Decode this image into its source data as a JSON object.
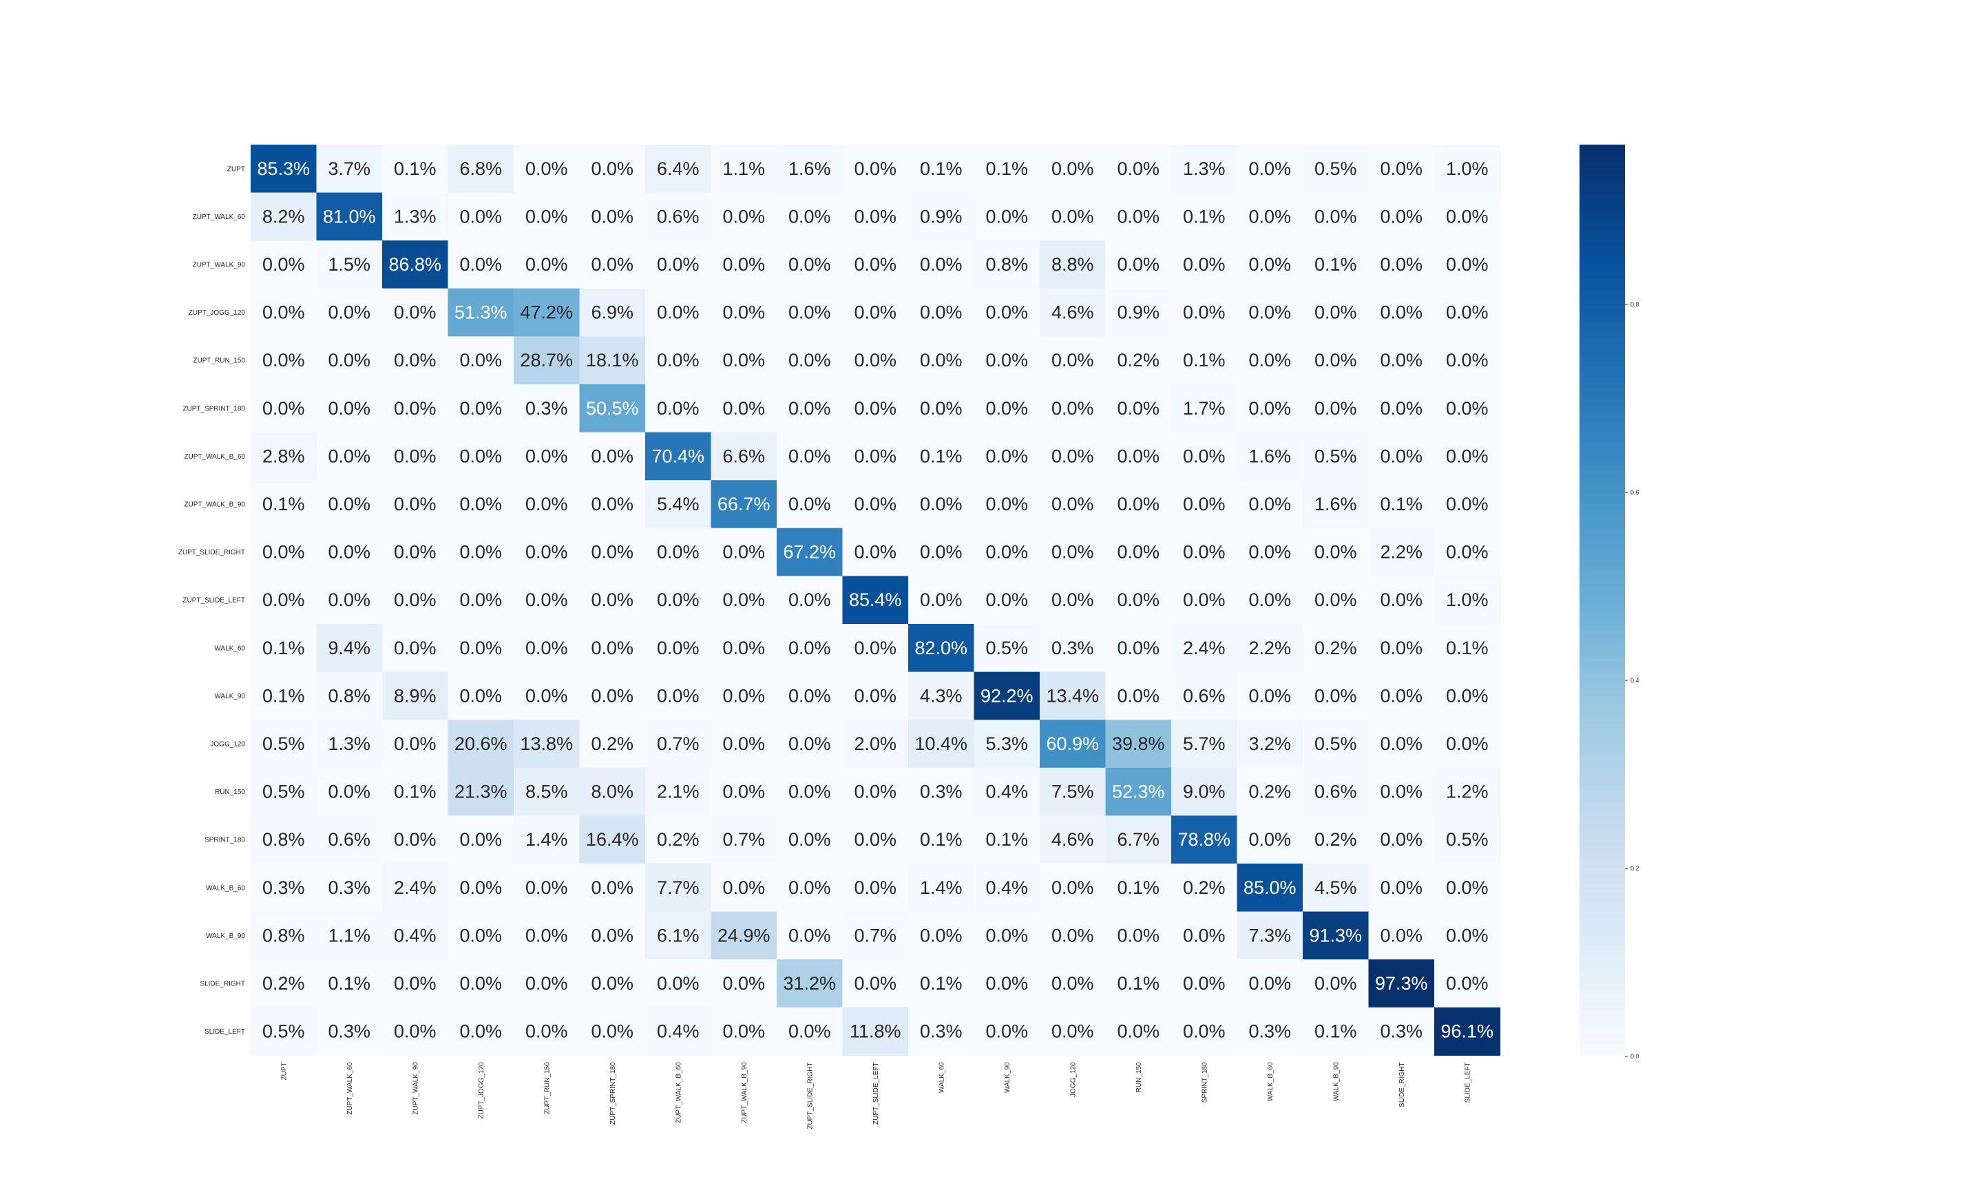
{
  "chart_data": {
    "type": "heatmap",
    "title": "",
    "xlabel": "",
    "ylabel": "",
    "row_labels": [
      "ZUPT",
      "ZUPT_WALK_60",
      "ZUPT_WALK_90",
      "ZUPT_JOGG_120",
      "ZUPT_RUN_150",
      "ZUPT_SPRINT_180",
      "ZUPT_WALK_B_60",
      "ZUPT_WALK_B_90",
      "ZUPT_SLIDE_RIGHT",
      "ZUPT_SLIDE_LEFT",
      "WALK_60",
      "WALK_90",
      "JOGG_120",
      "RUN_150",
      "SPRINT_180",
      "WALK_B_60",
      "WALK_B_90",
      "SLIDE_RIGHT",
      "SLIDE_LEFT"
    ],
    "col_labels": [
      "ZUPT",
      "ZUPT_WALK_60",
      "ZUPT_WALK_90",
      "ZUPT_JOGG_120",
      "ZUPT_RUN_150",
      "ZUPT_SPRINT_180",
      "ZUPT_WALK_B_60",
      "ZUPT_WALK_B_90",
      "ZUPT_SLIDE_RIGHT",
      "ZUPT_SLIDE_LEFT",
      "WALK_60",
      "WALK_90",
      "JOGG_120",
      "RUN_150",
      "SPRINT_180",
      "WALK_B_60",
      "WALK_B_90",
      "SLIDE_RIGHT",
      "SLIDE_LEFT"
    ],
    "values": [
      [
        85.3,
        3.7,
        0.1,
        6.8,
        0.0,
        0.0,
        6.4,
        1.1,
        1.6,
        0.0,
        0.1,
        0.1,
        0.0,
        0.0,
        1.3,
        0.0,
        0.5,
        0.0,
        1.0
      ],
      [
        8.2,
        81.0,
        1.3,
        0.0,
        0.0,
        0.0,
        0.6,
        0.0,
        0.0,
        0.0,
        0.9,
        0.0,
        0.0,
        0.0,
        0.1,
        0.0,
        0.0,
        0.0,
        0.0
      ],
      [
        0.0,
        1.5,
        86.8,
        0.0,
        0.0,
        0.0,
        0.0,
        0.0,
        0.0,
        0.0,
        0.0,
        0.8,
        8.8,
        0.0,
        0.0,
        0.0,
        0.1,
        0.0,
        0.0
      ],
      [
        0.0,
        0.0,
        0.0,
        51.3,
        47.2,
        6.9,
        0.0,
        0.0,
        0.0,
        0.0,
        0.0,
        0.0,
        4.6,
        0.9,
        0.0,
        0.0,
        0.0,
        0.0,
        0.0
      ],
      [
        0.0,
        0.0,
        0.0,
        0.0,
        28.7,
        18.1,
        0.0,
        0.0,
        0.0,
        0.0,
        0.0,
        0.0,
        0.0,
        0.2,
        0.1,
        0.0,
        0.0,
        0.0,
        0.0
      ],
      [
        0.0,
        0.0,
        0.0,
        0.0,
        0.3,
        50.5,
        0.0,
        0.0,
        0.0,
        0.0,
        0.0,
        0.0,
        0.0,
        0.0,
        1.7,
        0.0,
        0.0,
        0.0,
        0.0
      ],
      [
        2.8,
        0.0,
        0.0,
        0.0,
        0.0,
        0.0,
        70.4,
        6.6,
        0.0,
        0.0,
        0.1,
        0.0,
        0.0,
        0.0,
        0.0,
        1.6,
        0.5,
        0.0,
        0.0
      ],
      [
        0.1,
        0.0,
        0.0,
        0.0,
        0.0,
        0.0,
        5.4,
        66.7,
        0.0,
        0.0,
        0.0,
        0.0,
        0.0,
        0.0,
        0.0,
        0.0,
        1.6,
        0.1,
        0.0
      ],
      [
        0.0,
        0.0,
        0.0,
        0.0,
        0.0,
        0.0,
        0.0,
        0.0,
        67.2,
        0.0,
        0.0,
        0.0,
        0.0,
        0.0,
        0.0,
        0.0,
        0.0,
        2.2,
        0.0
      ],
      [
        0.0,
        0.0,
        0.0,
        0.0,
        0.0,
        0.0,
        0.0,
        0.0,
        0.0,
        85.4,
        0.0,
        0.0,
        0.0,
        0.0,
        0.0,
        0.0,
        0.0,
        0.0,
        1.0
      ],
      [
        0.1,
        9.4,
        0.0,
        0.0,
        0.0,
        0.0,
        0.0,
        0.0,
        0.0,
        0.0,
        82.0,
        0.5,
        0.3,
        0.0,
        2.4,
        2.2,
        0.2,
        0.0,
        0.1
      ],
      [
        0.1,
        0.8,
        8.9,
        0.0,
        0.0,
        0.0,
        0.0,
        0.0,
        0.0,
        0.0,
        4.3,
        92.2,
        13.4,
        0.0,
        0.6,
        0.0,
        0.0,
        0.0,
        0.0
      ],
      [
        0.5,
        1.3,
        0.0,
        20.6,
        13.8,
        0.2,
        0.7,
        0.0,
        0.0,
        2.0,
        10.4,
        5.3,
        60.9,
        39.8,
        5.7,
        3.2,
        0.5,
        0.0,
        0.0
      ],
      [
        0.5,
        0.0,
        0.1,
        21.3,
        8.5,
        8.0,
        2.1,
        0.0,
        0.0,
        0.0,
        0.3,
        0.4,
        7.5,
        52.3,
        9.0,
        0.2,
        0.6,
        0.0,
        1.2
      ],
      [
        0.8,
        0.6,
        0.0,
        0.0,
        1.4,
        16.4,
        0.2,
        0.7,
        0.0,
        0.0,
        0.1,
        0.1,
        4.6,
        6.7,
        78.8,
        0.0,
        0.2,
        0.0,
        0.5
      ],
      [
        0.3,
        0.3,
        2.4,
        0.0,
        0.0,
        0.0,
        7.7,
        0.0,
        0.0,
        0.0,
        1.4,
        0.4,
        0.0,
        0.1,
        0.2,
        85.0,
        4.5,
        0.0,
        0.0
      ],
      [
        0.8,
        1.1,
        0.4,
        0.0,
        0.0,
        0.0,
        6.1,
        24.9,
        0.0,
        0.7,
        0.0,
        0.0,
        0.0,
        0.0,
        0.0,
        7.3,
        91.3,
        0.0,
        0.0
      ],
      [
        0.2,
        0.1,
        0.0,
        0.0,
        0.0,
        0.0,
        0.0,
        0.0,
        31.2,
        0.0,
        0.1,
        0.0,
        0.0,
        0.1,
        0.0,
        0.0,
        0.0,
        97.3,
        0.0
      ],
      [
        0.5,
        0.3,
        0.0,
        0.0,
        0.0,
        0.0,
        0.4,
        0.0,
        0.0,
        11.8,
        0.3,
        0.0,
        0.0,
        0.0,
        0.0,
        0.3,
        0.1,
        0.3,
        96.1
      ]
    ],
    "value_format": "percent, 1 decimal",
    "colormap": "Blues",
    "color_range": [
      0.0,
      0.97
    ],
    "colorbar_ticks": [
      "0.0",
      "0.2",
      "0.4",
      "0.6",
      "0.8"
    ],
    "grid": false,
    "legend": "colorbar right"
  }
}
